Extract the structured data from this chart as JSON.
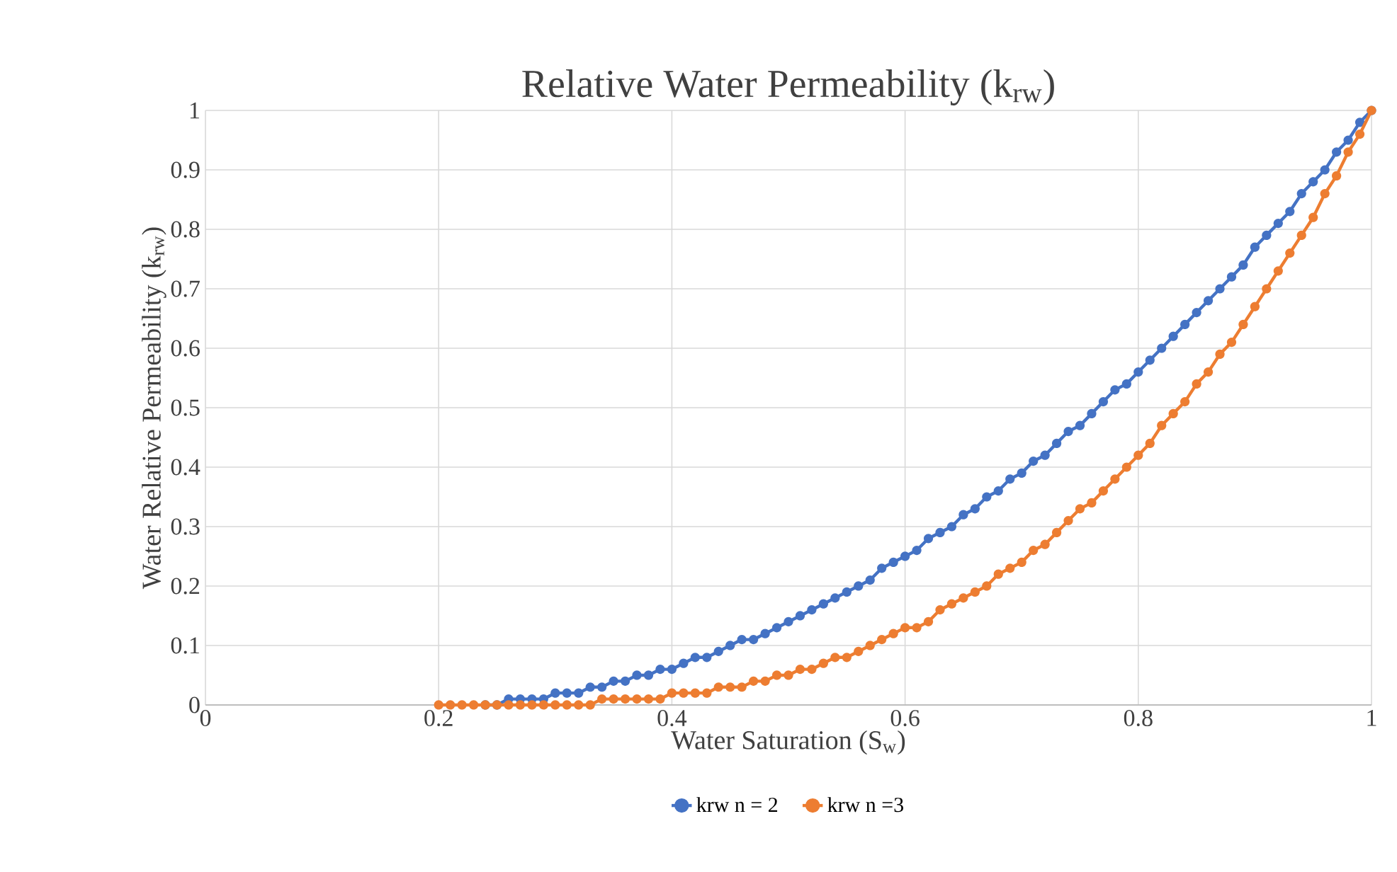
{
  "chart_data": {
    "type": "line",
    "title": "Relative Water Permeability (k$_{rw}$)",
    "xlabel": "Water Saturation (S$_{w}$)",
    "ylabel": "Water Relative Permeability (k$_{rw}$)",
    "x": [
      0.2,
      0.21,
      0.22,
      0.23,
      0.24,
      0.25,
      0.26,
      0.27,
      0.28,
      0.29,
      0.3,
      0.31,
      0.32,
      0.33,
      0.34,
      0.35,
      0.36,
      0.37,
      0.38,
      0.39,
      0.4,
      0.41,
      0.42,
      0.43,
      0.44,
      0.45,
      0.46,
      0.47,
      0.48,
      0.49,
      0.5,
      0.51,
      0.52,
      0.53,
      0.54,
      0.55,
      0.56,
      0.57,
      0.58,
      0.59,
      0.6,
      0.61,
      0.62,
      0.63,
      0.64,
      0.65,
      0.66,
      0.67,
      0.68,
      0.69,
      0.7,
      0.71,
      0.72,
      0.73,
      0.74,
      0.75,
      0.76,
      0.77,
      0.78,
      0.79,
      0.8,
      0.81,
      0.82,
      0.83,
      0.84,
      0.85,
      0.86,
      0.87,
      0.88,
      0.89,
      0.9,
      0.91,
      0.92,
      0.93,
      0.94,
      0.95,
      0.96,
      0.97,
      0.98,
      0.99,
      1
    ],
    "series": [
      {
        "name": "krw n = 2",
        "color": "#4472c4",
        "values": [
          null,
          null,
          null,
          null,
          0,
          0,
          0.01,
          0.01,
          0.01,
          0.01,
          0.02,
          0.02,
          0.02,
          0.03,
          0.03,
          0.04,
          0.04,
          0.05,
          0.05,
          0.06,
          0.06,
          0.07,
          0.08,
          0.08,
          0.09,
          0.1,
          0.11,
          0.11,
          0.12,
          0.13,
          0.14,
          0.15,
          0.16,
          0.17,
          0.18,
          0.19,
          0.2,
          0.21,
          0.23,
          0.24,
          0.25,
          0.26,
          0.28,
          0.29,
          0.3,
          0.32,
          0.33,
          0.35,
          0.36,
          0.38,
          0.39,
          0.41,
          0.42,
          0.44,
          0.46,
          0.47,
          0.49,
          0.51,
          0.53,
          0.54,
          0.56,
          0.58,
          0.6,
          0.62,
          0.64,
          0.66,
          0.68,
          0.7,
          0.72,
          0.74,
          0.77,
          0.79,
          0.81,
          0.83,
          0.86,
          0.88,
          0.9,
          0.93,
          0.95,
          0.98,
          1
        ]
      },
      {
        "name": "krw n =3",
        "color": "#ed7d31",
        "values": [
          0,
          0,
          0,
          0,
          0,
          0,
          0,
          0,
          0,
          0,
          0,
          0,
          0,
          0,
          0.01,
          0.01,
          0.01,
          0.01,
          0.01,
          0.01,
          0.02,
          0.02,
          0.02,
          0.02,
          0.03,
          0.03,
          0.03,
          0.04,
          0.04,
          0.05,
          0.05,
          0.06,
          0.06,
          0.07,
          0.08,
          0.08,
          0.09,
          0.1,
          0.11,
          0.12,
          0.13,
          0.13,
          0.14,
          0.16,
          0.17,
          0.18,
          0.19,
          0.2,
          0.22,
          0.23,
          0.24,
          0.26,
          0.27,
          0.29,
          0.31,
          0.33,
          0.34,
          0.36,
          0.38,
          0.4,
          0.42,
          0.44,
          0.47,
          0.49,
          0.51,
          0.54,
          0.56,
          0.59,
          0.61,
          0.64,
          0.67,
          0.7,
          0.73,
          0.76,
          0.79,
          0.82,
          0.86,
          0.89,
          0.93,
          0.96,
          1
        ]
      }
    ],
    "xlim": [
      0,
      1
    ],
    "xticks": [
      0,
      0.2,
      0.4,
      0.6,
      0.8,
      1
    ],
    "ylim": [
      0,
      1
    ],
    "yticks": [
      0,
      0.1,
      0.2,
      0.3,
      0.4,
      0.5,
      0.6,
      0.7,
      0.8,
      0.9,
      1
    ],
    "grid": true,
    "legend": "bottom",
    "marker": "circle",
    "line_style": "solid"
  }
}
